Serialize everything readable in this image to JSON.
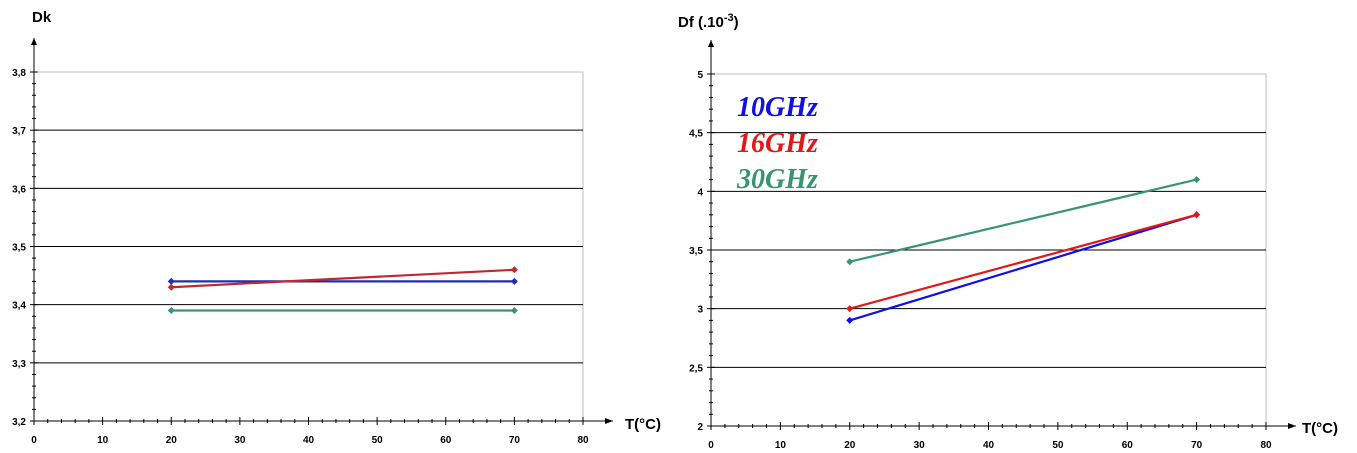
{
  "chart_data": [
    {
      "type": "line",
      "title": "",
      "ylabel": "Dk",
      "xlabel": "T(°C)",
      "xlim": [
        0,
        80
      ],
      "ylim": [
        3.2,
        3.8
      ],
      "x_ticks": [
        "0",
        "10",
        "20",
        "30",
        "40",
        "50",
        "60",
        "70",
        "80"
      ],
      "y_ticks": [
        "3,2",
        "3,3",
        "3,4",
        "3,5",
        "3,6",
        "3,7",
        "3,8"
      ],
      "grid": true,
      "series": [
        {
          "color": "#1f2fb4",
          "x": [
            20,
            70
          ],
          "y": [
            3.44,
            3.44
          ]
        },
        {
          "color": "#c0282d",
          "x": [
            20,
            70
          ],
          "y": [
            3.43,
            3.46
          ]
        },
        {
          "color": "#3a9470",
          "x": [
            20,
            70
          ],
          "y": [
            3.39,
            3.39
          ]
        }
      ]
    },
    {
      "type": "line",
      "title": "",
      "ylabel": "Df (.10",
      "ylabel_sup": "-3",
      "ylabel_suffix": ")",
      "xlabel": "T(°C)",
      "xlim": [
        0,
        80
      ],
      "ylim": [
        2,
        5
      ],
      "x_ticks": [
        "0",
        "10",
        "20",
        "30",
        "40",
        "50",
        "60",
        "70",
        "80"
      ],
      "y_ticks": [
        "2",
        "2,5",
        "3",
        "3,5",
        "4",
        "4,5",
        "5"
      ],
      "grid": true,
      "legend_placement": "top-left",
      "series": [
        {
          "name": "10GHz",
          "color": "#1010e0",
          "x": [
            20,
            70
          ],
          "y": [
            2.9,
            3.8
          ]
        },
        {
          "name": "16GHz",
          "color": "#e01818",
          "x": [
            20,
            70
          ],
          "y": [
            3.0,
            3.8
          ]
        },
        {
          "name": "30GHz",
          "color": "#3a9470",
          "x": [
            20,
            70
          ],
          "y": [
            3.4,
            4.1
          ]
        }
      ]
    }
  ]
}
